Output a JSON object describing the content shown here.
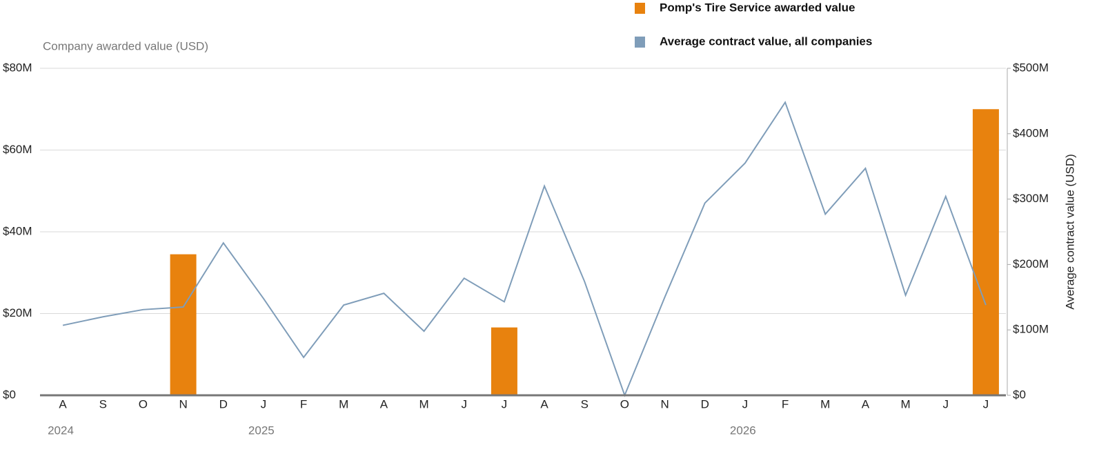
{
  "chart_data": {
    "type": "bar-line",
    "left_axis_title": "Company awarded value (USD)",
    "right_axis_title": "Average contract value (USD)",
    "categories": [
      "A",
      "S",
      "O",
      "N",
      "D",
      "J",
      "F",
      "M",
      "A",
      "M",
      "J",
      "J",
      "A",
      "S",
      "O",
      "N",
      "D",
      "J",
      "F",
      "M",
      "A",
      "M",
      "J",
      "J"
    ],
    "years": [
      "2024",
      null,
      null,
      null,
      null,
      "2025",
      null,
      null,
      null,
      null,
      null,
      null,
      null,
      null,
      null,
      null,
      null,
      "2026",
      null,
      null,
      null,
      null,
      null,
      null
    ],
    "ylim": [
      0,
      80000000
    ],
    "yticks": [
      {
        "value": 0,
        "label": "$0"
      },
      {
        "value": 20000000,
        "label": "$20M"
      },
      {
        "value": 40000000,
        "label": "$40M"
      },
      {
        "value": 60000000,
        "label": "$60M"
      },
      {
        "value": 80000000,
        "label": "$80M"
      }
    ],
    "y2lim": [
      0,
      500000000
    ],
    "y2ticks": [
      {
        "value": 0,
        "label": "$0"
      },
      {
        "value": 100000000,
        "label": "$100M"
      },
      {
        "value": 200000000,
        "label": "$200M"
      },
      {
        "value": 300000000,
        "label": "$300M"
      },
      {
        "value": 400000000,
        "label": "$400M"
      },
      {
        "value": 500000000,
        "label": "$500M"
      }
    ],
    "grid": true,
    "series": [
      {
        "name": "Pomp's Tire Service awarded value",
        "type": "bar",
        "color": "#e8820e",
        "values": [
          null,
          null,
          null,
          34500000,
          null,
          null,
          null,
          null,
          null,
          null,
          null,
          16600000,
          null,
          null,
          null,
          null,
          null,
          null,
          null,
          null,
          null,
          null,
          null,
          70000000
        ]
      },
      {
        "name": "Average contract value, all companies",
        "type": "line",
        "axis": "y2",
        "color": "#7f9db9",
        "values": [
          107000000,
          120000000,
          131000000,
          135000000,
          233000000,
          148000000,
          58000000,
          138000000,
          156000000,
          98000000,
          179000000,
          143000000,
          320000000,
          174000000,
          0,
          150000000,
          294000000,
          355000000,
          448000000,
          277000000,
          347000000,
          153000000,
          304000000,
          138000000
        ]
      }
    ]
  }
}
